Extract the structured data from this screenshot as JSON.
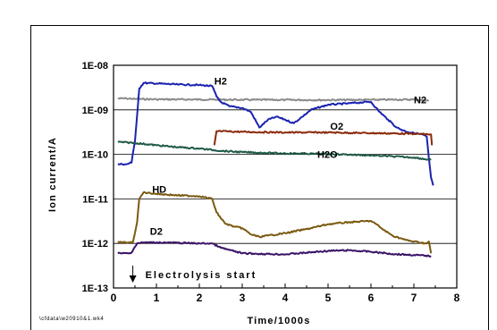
{
  "chart_data": {
    "type": "line",
    "title": "",
    "xlabel": "Time/1000s",
    "ylabel": "Ion current/A",
    "xlim": [
      0,
      8
    ],
    "ylim_log10": [
      -13,
      -8
    ],
    "y_scale": "log",
    "grid": true,
    "x_ticks": [
      "0",
      "1",
      "2",
      "3",
      "4",
      "5",
      "6",
      "7",
      "8"
    ],
    "y_ticks": [
      "1E-08",
      "1E-09",
      "1E-10",
      "1E-11",
      "1E-12",
      "1E-13"
    ],
    "series": [
      {
        "name": "N2",
        "color": "#8a8a8a",
        "x": [
          0.1,
          0.3,
          0.5,
          1.0,
          2.0,
          3.0,
          4.0,
          5.0,
          6.0,
          7.0,
          7.35
        ],
        "y": [
          1.8e-09,
          1.8e-09,
          1.75e-09,
          1.72e-09,
          1.7e-09,
          1.68e-09,
          1.67e-09,
          1.66e-09,
          1.68e-09,
          1.7e-09,
          1.6e-09
        ]
      },
      {
        "name": "H2",
        "color": "#1a22b0",
        "x": [
          0.1,
          0.3,
          0.42,
          0.5,
          0.56,
          0.6,
          0.7,
          1.0,
          1.5,
          2.0,
          2.3,
          2.4,
          2.5,
          2.7,
          3.0,
          3.2,
          3.4,
          3.6,
          3.8,
          4.0,
          4.2,
          4.4,
          4.6,
          5.0,
          5.5,
          5.9,
          6.0,
          6.2,
          6.4,
          6.6,
          6.8,
          7.0,
          7.2,
          7.3,
          7.35,
          7.4,
          7.45
        ],
        "y": [
          6e-11,
          6e-11,
          6.5e-11,
          2e-10,
          1e-09,
          3e-09,
          4e-09,
          3.9e-09,
          3.7e-09,
          3.6e-09,
          3.4e-09,
          2e-09,
          1.5e-09,
          1.2e-09,
          1.1e-09,
          9e-10,
          4e-10,
          6e-10,
          7e-10,
          6e-10,
          5e-10,
          7e-10,
          1e-09,
          1.3e-09,
          1.4e-09,
          1.5e-09,
          1.5e-09,
          9e-10,
          6e-10,
          4e-10,
          3.3e-10,
          3e-10,
          2.8e-10,
          2.5e-10,
          8e-11,
          3e-11,
          2e-11
        ]
      },
      {
        "name": "O2",
        "color": "#8b2a0c",
        "x": [
          2.35,
          2.4,
          2.5,
          3.0,
          4.0,
          5.0,
          6.0,
          7.0,
          7.4,
          7.42
        ],
        "y": [
          1.6e-10,
          3.3e-10,
          3.3e-10,
          3.2e-10,
          3.1e-10,
          3.1e-10,
          3e-10,
          2.9e-10,
          2.8e-10,
          1.6e-10
        ]
      },
      {
        "name": "H2O",
        "color": "#1f5a48",
        "x": [
          0.1,
          0.5,
          1.0,
          1.5,
          2.0,
          2.5,
          3.0,
          3.5,
          4.0,
          4.5,
          4.7,
          5.3,
          6.0,
          6.5,
          7.0,
          7.4
        ],
        "y": [
          1.9e-10,
          1.8e-10,
          1.6e-10,
          1.45e-10,
          1.35e-10,
          1.2e-10,
          1.12e-10,
          1.08e-10,
          1.05e-10,
          1.04e-10,
          1.03e-10,
          1e-10,
          9.5e-11,
          9e-11,
          8.5e-11,
          7.5e-11
        ]
      },
      {
        "name": "HD",
        "color": "#7a5a10",
        "x": [
          0.1,
          0.45,
          0.55,
          0.6,
          0.7,
          1.0,
          1.5,
          2.0,
          2.3,
          2.4,
          2.6,
          2.8,
          3.0,
          3.2,
          3.4,
          3.6,
          4.0,
          4.5,
          5.0,
          5.5,
          6.0,
          6.1,
          6.3,
          6.5,
          6.8,
          7.0,
          7.3,
          7.35,
          7.4
        ],
        "y": [
          1.05e-12,
          1.05e-12,
          3e-12,
          1e-11,
          1.4e-11,
          1.3e-11,
          1.2e-11,
          1.15e-11,
          1e-11,
          5e-12,
          2.8e-12,
          2.4e-12,
          2.2e-12,
          1.6e-12,
          1.4e-12,
          1.5e-12,
          1.7e-12,
          2.1e-12,
          2.7e-12,
          3e-12,
          3.2e-12,
          2.8e-12,
          2e-12,
          1.5e-12,
          1.2e-12,
          1.1e-12,
          1e-12,
          1.1e-12,
          6e-13
        ]
      },
      {
        "name": "D2",
        "color": "#3a1466",
        "x": [
          0.1,
          0.4,
          0.55,
          0.7,
          1.0,
          1.5,
          2.0,
          2.3,
          2.5,
          3.0,
          3.5,
          4.0,
          4.5,
          5.0,
          5.5,
          6.0,
          6.5,
          7.0,
          7.4
        ],
        "y": [
          6e-13,
          6e-13,
          1e-12,
          1.05e-12,
          1.05e-12,
          1.03e-12,
          1e-12,
          1e-12,
          8e-13,
          6e-13,
          5.8e-13,
          5.7e-13,
          6.2e-13,
          6.8e-13,
          7e-13,
          6.5e-13,
          5.8e-13,
          5.5e-13,
          5.2e-13
        ]
      }
    ],
    "annotations": [
      {
        "text": "Electrolysis start",
        "x": 0.45
      }
    ],
    "footer": "\\cfdata\\w20910&1.wk4"
  }
}
